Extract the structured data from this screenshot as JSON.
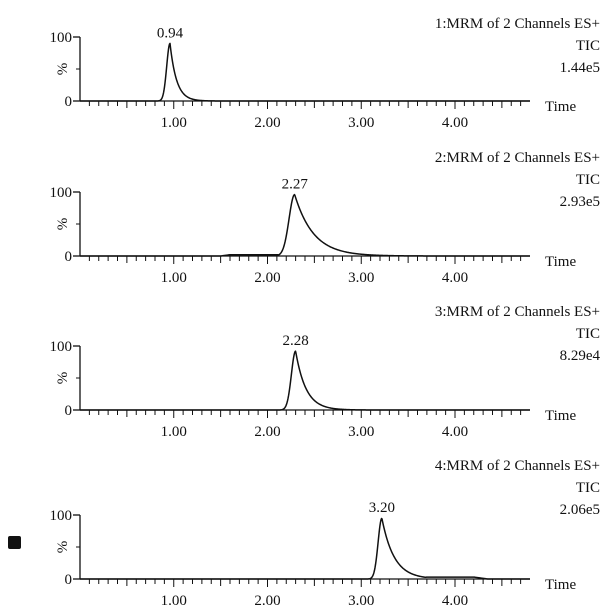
{
  "chart_data": [
    {
      "type": "line",
      "panel_title": "1:MRM of 2 Channels ES+",
      "trace": "TIC",
      "intensity": "1.44e5",
      "ylabel": "%",
      "xlabel": "Time",
      "y_ticks": [
        "0",
        "100"
      ],
      "ylim": [
        0,
        100
      ],
      "xlim": [
        0,
        4.8
      ],
      "x_tick_labels": [
        "1.00",
        "2.00",
        "3.00",
        "4.00"
      ],
      "peak_label": "0.94",
      "peak": {
        "rt": 0.96,
        "height": 90,
        "rise": 0.035,
        "tail": 0.07
      },
      "baseline": [
        {
          "x": 0.0,
          "y": 0.0
        },
        {
          "x": 4.8,
          "y": 0.0
        }
      ]
    },
    {
      "type": "line",
      "panel_title": "2:MRM of 2 Channels ES+",
      "trace": "TIC",
      "intensity": "2.93e5",
      "ylabel": "%",
      "xlabel": "Time",
      "y_ticks": [
        "0",
        "100"
      ],
      "ylim": [
        0,
        100
      ],
      "xlim": [
        0,
        4.8
      ],
      "x_tick_labels": [
        "1.00",
        "2.00",
        "3.00",
        "4.00"
      ],
      "peak_label": "2.27",
      "peak": {
        "rt": 2.29,
        "height": 96,
        "rise": 0.06,
        "tail": 0.2
      },
      "baseline": [
        {
          "x": 0.0,
          "y": 0.0
        },
        {
          "x": 1.5,
          "y": 0.0
        },
        {
          "x": 1.6,
          "y": 2.0
        },
        {
          "x": 2.1,
          "y": 2.0
        },
        {
          "x": 2.2,
          "y": 1.0
        },
        {
          "x": 2.9,
          "y": 1.0
        },
        {
          "x": 3.1,
          "y": 0.0
        },
        {
          "x": 4.8,
          "y": 0.0
        }
      ]
    },
    {
      "type": "line",
      "panel_title": "3:MRM of 2 Channels ES+",
      "trace": "TIC",
      "intensity": "8.29e4",
      "ylabel": "%",
      "xlabel": "Time",
      "y_ticks": [
        "0",
        "100"
      ],
      "ylim": [
        0,
        100
      ],
      "xlim": [
        0,
        4.8
      ],
      "x_tick_labels": [
        "1.00",
        "2.00",
        "3.00",
        "4.00"
      ],
      "peak_label": "2.28",
      "peak": {
        "rt": 2.3,
        "height": 92,
        "rise": 0.045,
        "tail": 0.11
      },
      "baseline": [
        {
          "x": 0.0,
          "y": 0.0
        },
        {
          "x": 4.8,
          "y": 0.0
        }
      ]
    },
    {
      "type": "line",
      "panel_title": "4:MRM of 2 Channels ES+",
      "trace": "TIC",
      "intensity": "2.06e5",
      "ylabel": "%",
      "xlabel": "Time",
      "y_ticks": [
        "0",
        "100"
      ],
      "ylim": [
        0,
        100
      ],
      "xlim": [
        0,
        4.8
      ],
      "x_tick_labels": [
        "1.00",
        "2.00",
        "3.00",
        "4.00"
      ],
      "peak_label": "3.20",
      "peak": {
        "rt": 3.22,
        "height": 95,
        "rise": 0.04,
        "tail": 0.13
      },
      "baseline": [
        {
          "x": 0.0,
          "y": 0.0
        },
        {
          "x": 3.6,
          "y": 0.0
        },
        {
          "x": 3.7,
          "y": 3.0
        },
        {
          "x": 4.2,
          "y": 3.0
        },
        {
          "x": 4.35,
          "y": 0.0
        },
        {
          "x": 4.8,
          "y": 0.0
        }
      ]
    }
  ]
}
